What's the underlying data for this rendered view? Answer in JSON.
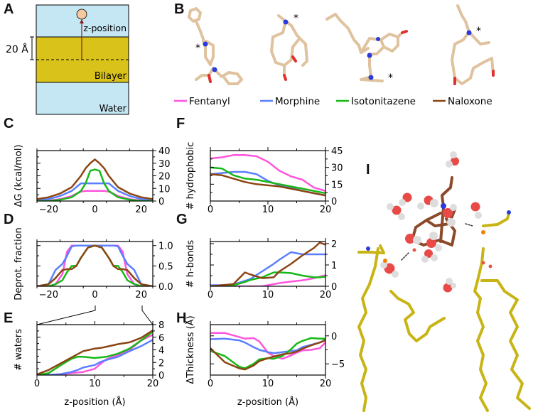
{
  "figure": {
    "panels": {
      "A": {
        "letter": "A",
        "labels": {
          "z_position": "z-position",
          "bilayer": "Bilayer",
          "water": "Water",
          "scale": "20 Å"
        },
        "colors": {
          "water": "#c5e6f3",
          "bilayer": "#d9c21a",
          "molecule": "#f5c9a0",
          "arrow": "#8b1a1a"
        }
      },
      "B": {
        "letter": "B",
        "molecules": [
          "Fentanyl",
          "Morphine",
          "Isotonitazene",
          "Naloxone"
        ],
        "marker": "*"
      },
      "C": {
        "letter": "C"
      },
      "D": {
        "letter": "D"
      },
      "E": {
        "letter": "E"
      },
      "F": {
        "letter": "F"
      },
      "G": {
        "letter": "G"
      },
      "H": {
        "letter": "H"
      },
      "I": {
        "letter": "I",
        "description": "Naloxone in bilayer with water molecules and lipid headgroups"
      }
    },
    "legend": [
      {
        "name": "Fentanyl",
        "color": "#ff55dd"
      },
      {
        "name": "Morphine",
        "color": "#5b7fff"
      },
      {
        "name": "Isotonitazene",
        "color": "#18b818"
      },
      {
        "name": "Naloxone",
        "color": "#8b4513"
      }
    ],
    "xlabel": "z-position (Å)"
  },
  "chart_data": [
    {
      "panel": "C",
      "type": "line",
      "ylabel": "ΔG (kcal/mol)",
      "xlabel": "",
      "xlim": [
        -25,
        25
      ],
      "ylim": [
        0,
        40
      ],
      "xticks": [
        -20,
        0,
        20
      ],
      "yticks": [
        0,
        10,
        20,
        30,
        40
      ],
      "x": [
        -25,
        -20,
        -15,
        -10,
        -6,
        -4,
        -2,
        0,
        2,
        4,
        6,
        10,
        15,
        20,
        25
      ],
      "series": [
        {
          "name": "Fentanyl",
          "values": [
            0,
            0.3,
            1.5,
            4,
            7.5,
            8,
            8,
            8,
            8,
            8,
            7.5,
            4,
            1.5,
            0.3,
            0
          ]
        },
        {
          "name": "Morphine",
          "values": [
            0.5,
            1.5,
            4,
            8,
            14,
            14,
            14,
            14,
            14,
            14,
            14,
            8,
            4,
            1.5,
            0.5
          ]
        },
        {
          "name": "Isotonitazene",
          "values": [
            0,
            0,
            1,
            3,
            8,
            14,
            24,
            25,
            24,
            14,
            8,
            3,
            1,
            0,
            0
          ]
        },
        {
          "name": "Naloxone",
          "values": [
            1.5,
            3,
            6,
            11,
            20,
            26,
            30,
            33,
            30,
            26,
            20,
            11,
            6,
            3,
            1.5
          ]
        }
      ]
    },
    {
      "panel": "D",
      "type": "line",
      "ylabel": "Deprot. fraction",
      "xlabel": "",
      "xlim": [
        -25,
        25
      ],
      "ylim": [
        0,
        1.1
      ],
      "xticks": [
        -20,
        0,
        20
      ],
      "yticks": [
        0.0,
        0.5,
        1.0
      ],
      "x": [
        -25,
        -20,
        -17,
        -14,
        -12,
        -10,
        -8,
        -6,
        -3,
        0,
        3,
        6,
        8,
        10,
        12,
        14,
        17,
        20,
        25
      ],
      "series": [
        {
          "name": "Fentanyl",
          "values": [
            0,
            0,
            0.05,
            0.3,
            0.85,
            1,
            1,
            1,
            1,
            1,
            1,
            1,
            1,
            1,
            0.85,
            0.3,
            0.05,
            0,
            0
          ]
        },
        {
          "name": "Morphine",
          "values": [
            0,
            0.05,
            0.4,
            0.55,
            0.75,
            0.98,
            1,
            1,
            1,
            1,
            1,
            1,
            1,
            0.98,
            0.75,
            0.55,
            0.4,
            0.05,
            0
          ]
        },
        {
          "name": "Isotonitazene",
          "values": [
            0,
            0,
            0.05,
            0.15,
            0.35,
            0.5,
            0.5,
            0.7,
            0.95,
            1,
            0.95,
            0.7,
            0.5,
            0.5,
            0.35,
            0.15,
            0.05,
            0,
            0
          ]
        },
        {
          "name": "Naloxone",
          "values": [
            0,
            0.05,
            0.2,
            0.4,
            0.42,
            0.42,
            0.5,
            0.7,
            0.95,
            1,
            0.95,
            0.7,
            0.5,
            0.42,
            0.42,
            0.4,
            0.2,
            0.05,
            0
          ]
        }
      ]
    },
    {
      "panel": "E",
      "type": "line",
      "ylabel": "# waters",
      "xlabel": "z-position (Å)",
      "xlim": [
        0,
        20
      ],
      "ylim": [
        0,
        8
      ],
      "xticks": [
        0,
        10,
        20
      ],
      "yticks": [
        0,
        2,
        4,
        6,
        8
      ],
      "x": [
        0,
        2,
        4,
        6,
        7,
        8,
        10,
        11,
        12,
        14,
        16,
        18,
        20
      ],
      "series": [
        {
          "name": "Fentanyl",
          "values": [
            0,
            0,
            0.1,
            0.3,
            0.4,
            0.5,
            1,
            1.8,
            2.5,
            3.2,
            4,
            5.5,
            6.4
          ]
        },
        {
          "name": "Morphine",
          "values": [
            0,
            0.05,
            0.15,
            0.5,
            0.8,
            1.2,
            1.6,
            2.1,
            2.4,
            2.9,
            3.8,
            4.6,
            5.6
          ]
        },
        {
          "name": "Isotonitazene",
          "values": [
            0,
            0.3,
            1.5,
            2.6,
            2.9,
            2.9,
            2.7,
            2.8,
            2.9,
            3.4,
            4.2,
            5.5,
            6.9
          ]
        },
        {
          "name": "Naloxone",
          "values": [
            0.1,
            0.8,
            1.8,
            2.8,
            3.3,
            3.8,
            4.2,
            4.3,
            4.5,
            4.9,
            5.2,
            5.9,
            7.1
          ]
        }
      ]
    },
    {
      "panel": "F",
      "type": "line",
      "ylabel": "# hydrophobic",
      "xlabel": "",
      "xlim": [
        0,
        20
      ],
      "ylim": [
        0,
        45
      ],
      "xticks": [
        0,
        10,
        20
      ],
      "yticks": [
        0,
        15,
        30,
        45
      ],
      "x": [
        0,
        2,
        4,
        6,
        8,
        10,
        12,
        14,
        16,
        18,
        20
      ],
      "series": [
        {
          "name": "Fentanyl",
          "values": [
            38,
            39,
            41,
            41,
            40,
            35,
            27,
            22,
            19,
            12,
            9
          ]
        },
        {
          "name": "Morphine",
          "values": [
            24,
            25,
            26,
            26,
            24,
            18,
            14,
            12,
            9,
            7,
            5
          ]
        },
        {
          "name": "Isotonitazene",
          "values": [
            30,
            29,
            23,
            20,
            19,
            17,
            15,
            13,
            11,
            9,
            7
          ]
        },
        {
          "name": "Naloxone",
          "values": [
            24,
            23,
            20,
            17,
            15,
            14,
            13,
            11,
            9,
            7,
            5
          ]
        }
      ]
    },
    {
      "panel": "G",
      "type": "line",
      "ylabel": "# h-bonds",
      "xlabel": "",
      "xlim": [
        0,
        20
      ],
      "ylim": [
        0,
        2.1
      ],
      "xticks": [
        0,
        10,
        20
      ],
      "yticks": [
        0,
        1,
        2
      ],
      "x": [
        0,
        2,
        4,
        6,
        7,
        9,
        11,
        12,
        14,
        16,
        18,
        19,
        20
      ],
      "series": [
        {
          "name": "Fentanyl",
          "values": [
            0,
            0,
            0,
            0,
            0,
            0,
            0.1,
            0.15,
            0.22,
            0.28,
            0.38,
            0.45,
            0.52
          ]
        },
        {
          "name": "Morphine",
          "values": [
            0.05,
            0.05,
            0.08,
            0.25,
            0.35,
            0.7,
            1.05,
            1.25,
            1.6,
            1.5,
            1.5,
            1.5,
            1.5
          ]
        },
        {
          "name": "Isotonitazene",
          "values": [
            0,
            0,
            0.05,
            0.2,
            0.3,
            0.42,
            0.65,
            0.65,
            0.62,
            0.5,
            0.42,
            0.42,
            0.45
          ]
        },
        {
          "name": "Naloxone",
          "values": [
            0,
            0.05,
            0.1,
            0.65,
            0.55,
            0.38,
            0.42,
            0.7,
            1.05,
            1.45,
            1.8,
            2.05,
            1.95
          ]
        }
      ]
    },
    {
      "panel": "H",
      "type": "line",
      "ylabel": "ΔThickness (Å)",
      "xlabel": "z-position (Å)",
      "xlim": [
        0,
        20
      ],
      "ylim": [
        -7,
        2
      ],
      "xticks": [
        0,
        10,
        20
      ],
      "yticks": [
        -5,
        0
      ],
      "x": [
        0,
        2.5,
        5,
        6,
        7.5,
        8.5,
        10,
        11,
        12.5,
        14,
        15,
        16,
        17.5,
        19,
        20
      ],
      "series": [
        {
          "name": "Fentanyl",
          "values": [
            0.5,
            0.5,
            -0.2,
            -0.5,
            -0.4,
            -1,
            -3,
            -3.6,
            -4.1,
            -3.5,
            -3.0,
            -2.6,
            -2.5,
            -2.2,
            -1.2
          ]
        },
        {
          "name": "Morphine",
          "values": [
            -0.6,
            -0.5,
            -0.8,
            -1.2,
            -2.0,
            -2.5,
            -2.9,
            -3.1,
            -2.9,
            -2.7,
            -2.6,
            -2.0,
            -1.6,
            -1.2,
            -0.7
          ]
        },
        {
          "name": "Isotonitazene",
          "values": [
            -2.7,
            -3.6,
            -5.5,
            -5.8,
            -5.0,
            -4.2,
            -4.0,
            -4.1,
            -3.6,
            -2.4,
            -1.4,
            -0.9,
            -0.4,
            -0.5,
            -0.5
          ]
        },
        {
          "name": "Naloxone",
          "values": [
            -2.2,
            -4.7,
            -5.8,
            -6.0,
            -5.3,
            -4.5,
            -4.0,
            -3.7,
            -3.3,
            -3.1,
            -2.8,
            -2.3,
            -1.7,
            -1.2,
            -0.8
          ]
        }
      ]
    }
  ]
}
